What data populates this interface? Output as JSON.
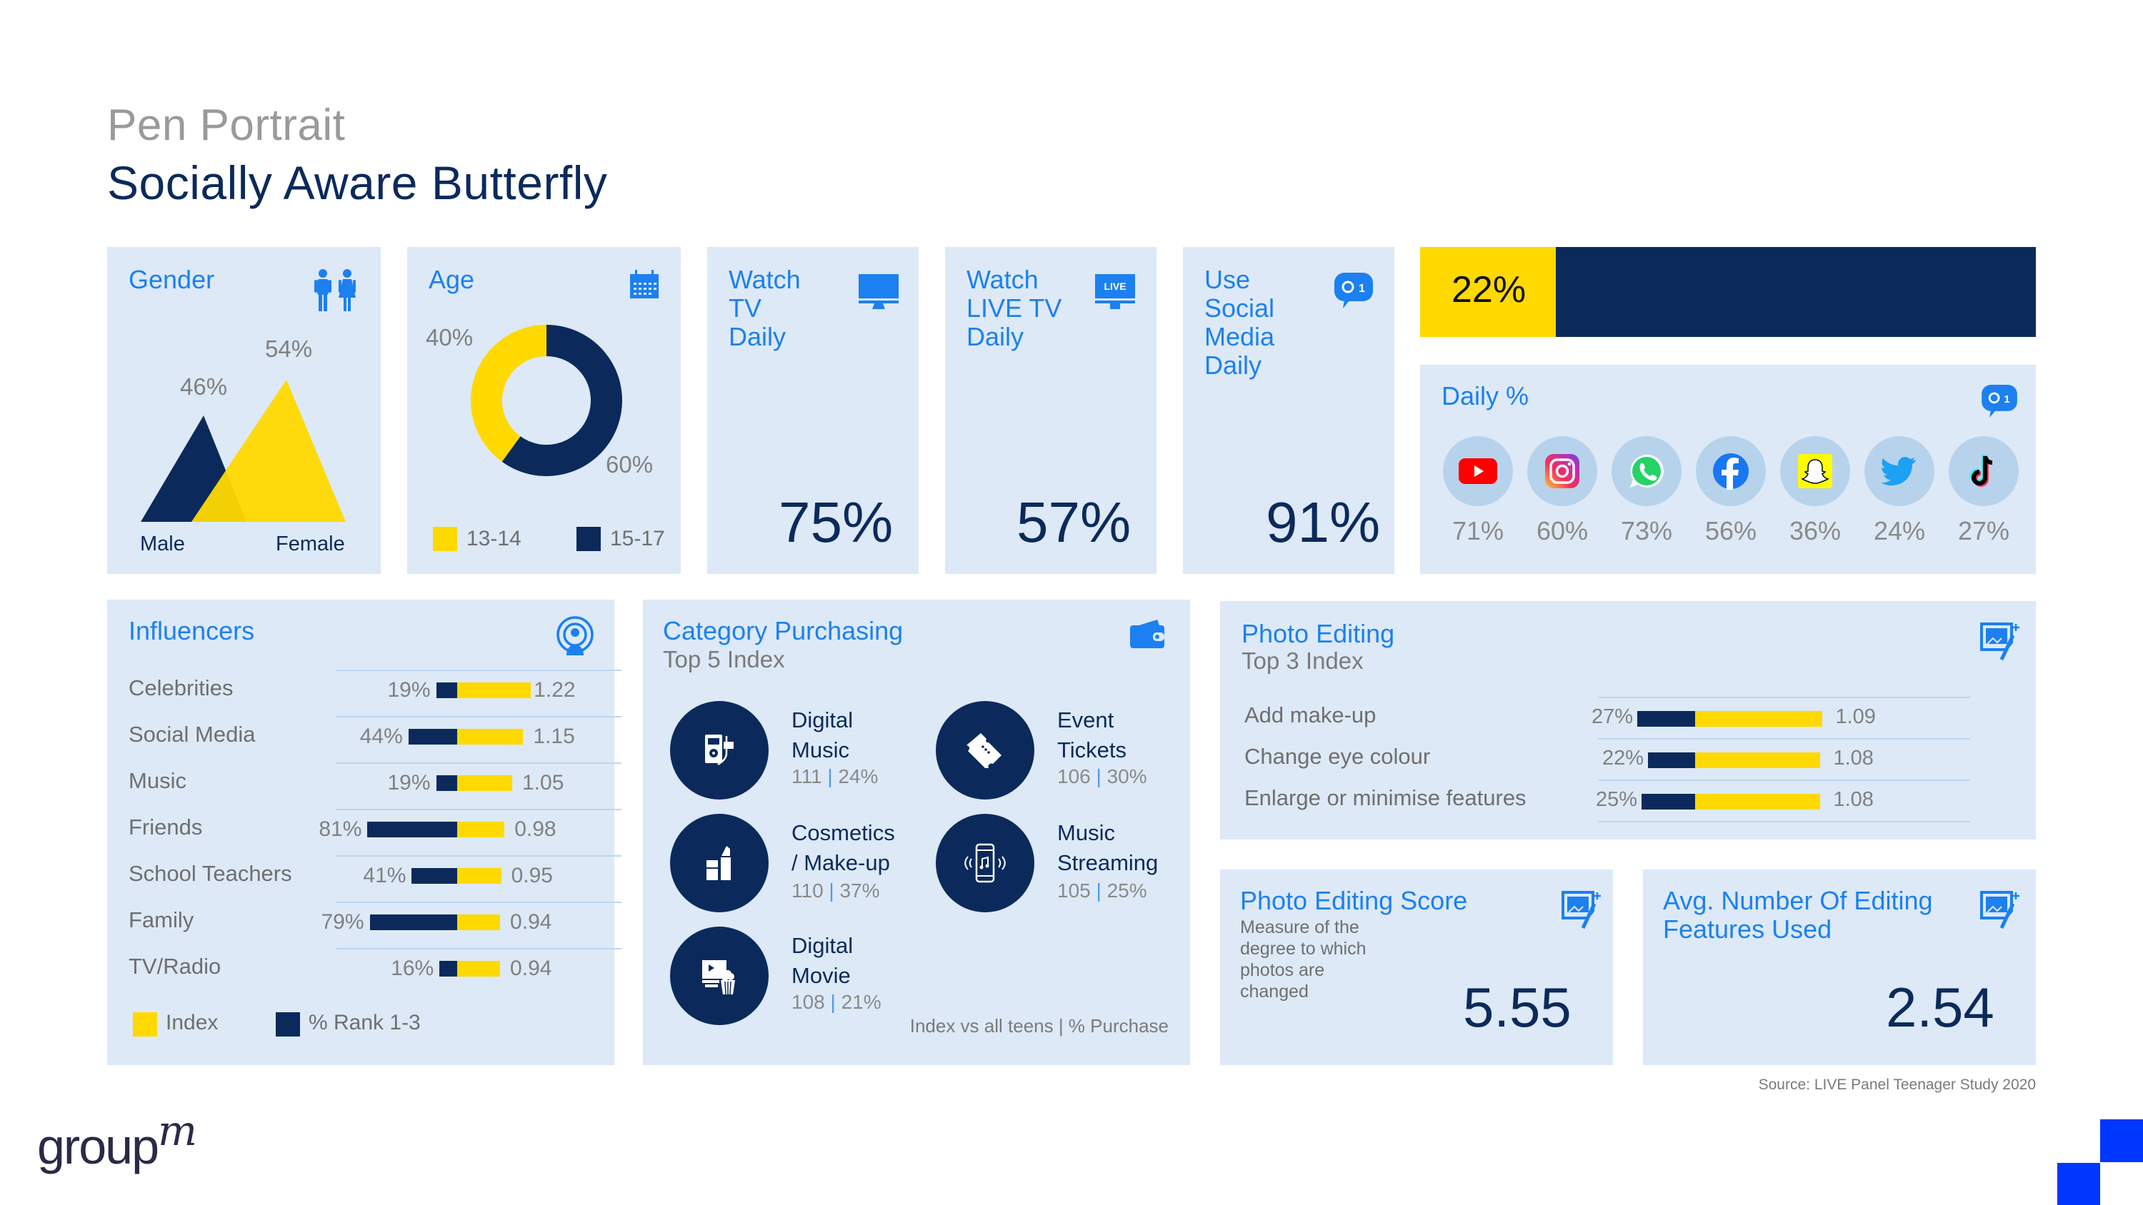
{
  "header": {
    "kicker": "Pen Portrait",
    "title": "Socially Aware Butterfly"
  },
  "colors": {
    "navy": "#0b2a5b",
    "yellow": "#ffd900",
    "accent_blue": "#1c80f0",
    "card_bg": "#dde9f6",
    "corner_blue": "#0037ff"
  },
  "gender": {
    "title": "Gender",
    "icon": "people-icon",
    "male": {
      "label": "Male",
      "pct": "46%",
      "value": 46
    },
    "female": {
      "label": "Female",
      "pct": "54%",
      "value": 54
    }
  },
  "age": {
    "title": "Age",
    "icon": "calendar-icon",
    "segments": [
      {
        "label": "13-14",
        "pct": "40%",
        "value": 40
      },
      {
        "label": "15-17",
        "pct": "60%",
        "value": 60
      }
    ]
  },
  "watch_tv": {
    "title_lines": [
      "Watch",
      "TV",
      "Daily"
    ],
    "icon": "monitor-icon",
    "value": "75%"
  },
  "watch_live_tv": {
    "title_lines": [
      "Watch",
      "LIVE TV",
      "Daily"
    ],
    "icon": "live-tv-icon",
    "icon_text": "LIVE",
    "value": "57%"
  },
  "social_media": {
    "title_lines": [
      "Use",
      "Social",
      "Media",
      "Daily"
    ],
    "icon": "chat-bubble-icon",
    "value": "91%"
  },
  "progress_banner": {
    "label": "22%",
    "fraction": 0.22
  },
  "daily": {
    "title": "Daily %",
    "icon": "chat-bubble-icon",
    "platforms": [
      {
        "name": "YouTube",
        "icon": "youtube-icon",
        "pct": "71%"
      },
      {
        "name": "Instagram",
        "icon": "instagram-icon",
        "pct": "60%"
      },
      {
        "name": "WhatsApp",
        "icon": "whatsapp-icon",
        "pct": "73%"
      },
      {
        "name": "Facebook",
        "icon": "facebook-icon",
        "pct": "56%"
      },
      {
        "name": "Snapchat",
        "icon": "snapchat-icon",
        "pct": "36%"
      },
      {
        "name": "Twitter",
        "icon": "twitter-icon",
        "pct": "24%"
      },
      {
        "name": "TikTok",
        "icon": "tiktok-icon",
        "pct": "27%"
      }
    ]
  },
  "influencers": {
    "title": "Influencers",
    "icon": "broadcast-icon",
    "rows": [
      {
        "label": "Celebrities",
        "pct": "19%",
        "pct_value": 19,
        "index": "1.22",
        "index_value": 1.22
      },
      {
        "label": "Social Media",
        "pct": "44%",
        "pct_value": 44,
        "index": "1.15",
        "index_value": 1.15
      },
      {
        "label": "Music",
        "pct": "19%",
        "pct_value": 19,
        "index": "1.05",
        "index_value": 1.05
      },
      {
        "label": "Friends",
        "pct": "81%",
        "pct_value": 81,
        "index": "0.98",
        "index_value": 0.98
      },
      {
        "label": "School Teachers",
        "pct": "41%",
        "pct_value": 41,
        "index": "0.95",
        "index_value": 0.95
      },
      {
        "label": "Family",
        "pct": "79%",
        "pct_value": 79,
        "index": "0.94",
        "index_value": 0.94
      },
      {
        "label": "TV/Radio",
        "pct": "16%",
        "pct_value": 16,
        "index": "0.94",
        "index_value": 0.94
      }
    ],
    "legend": [
      {
        "label": "Index",
        "color": "#ffd900"
      },
      {
        "label": "% Rank 1-3",
        "color": "#0b2a5b"
      }
    ]
  },
  "category": {
    "title": "Category Purchasing",
    "subtitle": "Top 5 Index",
    "icon": "wallet-icon",
    "items": [
      {
        "name_lines": [
          "Digital",
          "Music"
        ],
        "index": "111",
        "pct": "24%",
        "icon": "music-player-icon"
      },
      {
        "name_lines": [
          "Event",
          "Tickets"
        ],
        "index": "106",
        "pct": "30%",
        "icon": "ticket-icon"
      },
      {
        "name_lines": [
          "Cosmetics",
          "/ Make-up"
        ],
        "index": "110",
        "pct": "37%",
        "icon": "lipstick-icon"
      },
      {
        "name_lines": [
          "Music",
          "Streaming"
        ],
        "index": "105",
        "pct": "25%",
        "icon": "phone-music-icon"
      },
      {
        "name_lines": [
          "Digital",
          "Movie"
        ],
        "index": "108",
        "pct": "21%",
        "icon": "movie-popcorn-icon"
      }
    ],
    "sep": "|",
    "footnote": "Index vs all teens | % Purchase"
  },
  "photo_editing": {
    "title": "Photo Editing",
    "subtitle": "Top 3 Index",
    "icon": "photo-edit-icon",
    "rows": [
      {
        "label": "Add make-up",
        "pct": "27%",
        "pct_value": 27,
        "index": "1.09",
        "index_value": 1.09
      },
      {
        "label": "Change eye colour",
        "pct": "22%",
        "pct_value": 22,
        "index": "1.08",
        "index_value": 1.08
      },
      {
        "label": "Enlarge or minimise features",
        "pct": "25%",
        "pct_value": 25,
        "index": "1.08",
        "index_value": 1.08
      }
    ]
  },
  "score": {
    "title": "Photo Editing Score",
    "desc_lines": [
      "Measure of the",
      "degree to which",
      "photos are",
      "changed"
    ],
    "value": "5.55",
    "icon": "photo-edit-icon"
  },
  "avg_features": {
    "title_lines": [
      "Avg. Number Of Editing",
      "Features Used"
    ],
    "value": "2.54",
    "icon": "photo-edit-icon"
  },
  "footer": {
    "source": "Source: LIVE Panel Teenager Study 2020",
    "logo_main": "group",
    "logo_sup": "m"
  }
}
